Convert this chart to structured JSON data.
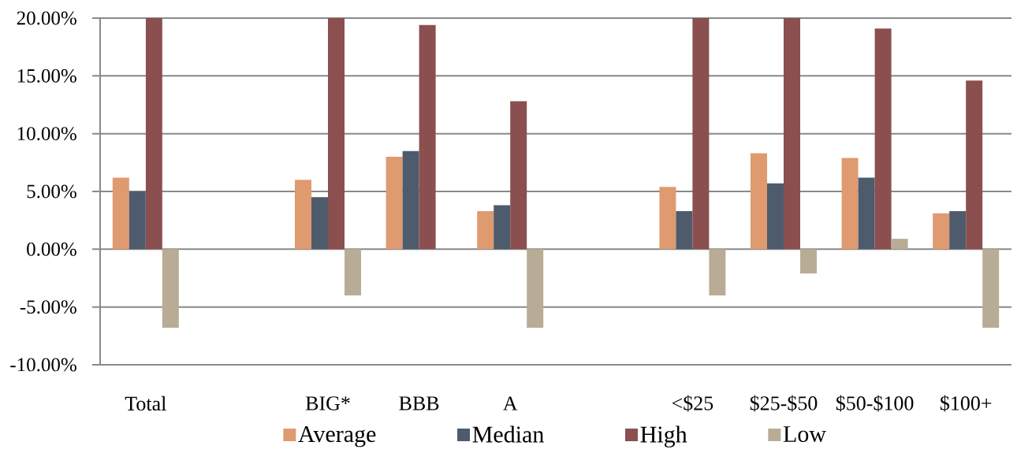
{
  "chart_data": {
    "type": "bar",
    "categories": [
      "Total",
      null,
      "BIG*",
      "BBB",
      "A",
      null,
      "<$25",
      "$25-$50",
      "$50-$100",
      "$100+"
    ],
    "series": [
      {
        "name": "Average",
        "color": "#df9a6f",
        "values": [
          6.2,
          null,
          6.0,
          8.0,
          3.3,
          null,
          5.4,
          8.3,
          7.9,
          3.1
        ]
      },
      {
        "name": "Median",
        "color": "#4d5b6d",
        "values": [
          5.0,
          null,
          4.5,
          8.5,
          3.8,
          null,
          3.3,
          5.7,
          6.2,
          3.3
        ]
      },
      {
        "name": "High",
        "color": "#8b4f4f",
        "values": [
          20,
          null,
          20,
          19.4,
          12.8,
          null,
          20,
          20,
          19.1,
          14.6
        ]
      },
      {
        "name": "Low",
        "color": "#b9ac96",
        "values": [
          -6.8,
          null,
          -4.0,
          null,
          -6.8,
          null,
          -4.0,
          -2.1,
          0.9,
          -6.8
        ]
      }
    ],
    "ylim": [
      -10,
      20
    ],
    "yticks": [
      {
        "value": -10,
        "label": "-10.00%"
      },
      {
        "value": -5,
        "label": "-5.00%"
      },
      {
        "value": 0,
        "label": "0.00%"
      },
      {
        "value": 5,
        "label": "5.00%"
      },
      {
        "value": 10,
        "label": "10.00%"
      },
      {
        "value": 15,
        "label": "15.00%"
      },
      {
        "value": 20,
        "label": "20.00%"
      }
    ],
    "grid": "y",
    "legend": "bottom"
  }
}
